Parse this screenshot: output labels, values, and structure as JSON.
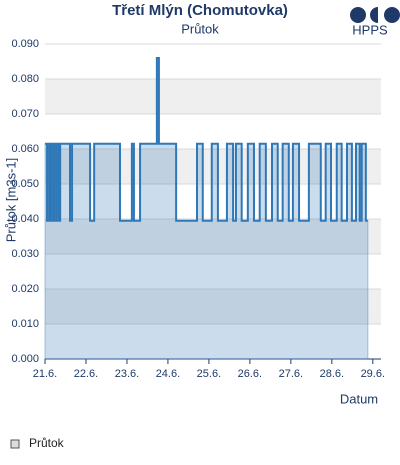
{
  "chart_data": {
    "type": "line",
    "title": "Třetí Mlýn (Chomutovka)",
    "subtitle": "Průtok",
    "logo_text": "HPPS",
    "y_label": "Průtok [m3s-1]",
    "x_label": "Datum",
    "xlim": [
      21,
      29.2
    ],
    "xticks": [
      {
        "value": 21,
        "label": "21.6."
      },
      {
        "value": 22,
        "label": "22.6."
      },
      {
        "value": 23,
        "label": "23.6."
      },
      {
        "value": 24,
        "label": "24.6."
      },
      {
        "value": 25,
        "label": "25.6."
      },
      {
        "value": 26,
        "label": "26.6."
      },
      {
        "value": 27,
        "label": "27.6."
      },
      {
        "value": 28,
        "label": "28.6."
      },
      {
        "value": 29,
        "label": "29.6."
      }
    ],
    "ylim": [
      0,
      0.09
    ],
    "yticks": [
      {
        "value": 0,
        "label": "0.000"
      },
      {
        "value": 0.01,
        "label": "0.010"
      },
      {
        "value": 0.02,
        "label": "0.020"
      },
      {
        "value": 0.03,
        "label": "0.030"
      },
      {
        "value": 0.04,
        "label": "0.040"
      },
      {
        "value": 0.05,
        "label": "0.050"
      },
      {
        "value": 0.06,
        "label": "0.060"
      },
      {
        "value": 0.07,
        "label": "0.070"
      },
      {
        "value": 0.08,
        "label": "0.080"
      },
      {
        "value": 0.09,
        "label": "0.090"
      }
    ],
    "grid": true,
    "legend": "bottom-left",
    "series": [
      {
        "name": "Průtok",
        "color": "#2f78b7",
        "x": [
          21.0,
          21.05,
          21.05,
          21.07,
          21.07,
          21.12,
          21.12,
          21.15,
          21.15,
          21.2,
          21.2,
          21.22,
          21.22,
          21.27,
          21.27,
          21.29,
          21.29,
          21.34,
          21.34,
          21.37,
          21.37,
          21.61,
          21.61,
          21.66,
          21.66,
          22.1,
          22.1,
          22.2,
          22.2,
          22.83,
          22.83,
          23.12,
          23.12,
          23.17,
          23.17,
          23.32,
          23.32,
          23.73,
          23.73,
          23.78,
          23.78,
          24.2,
          24.2,
          24.71,
          24.71,
          24.85,
          24.85,
          25.07,
          25.07,
          25.22,
          25.22,
          25.44,
          25.44,
          25.59,
          25.59,
          25.66,
          25.66,
          25.8,
          25.8,
          25.95,
          25.95,
          26.1,
          26.1,
          26.24,
          26.24,
          26.39,
          26.39,
          26.54,
          26.54,
          26.68,
          26.68,
          26.8,
          26.8,
          26.95,
          26.95,
          27.05,
          27.05,
          27.2,
          27.2,
          27.44,
          27.44,
          27.73,
          27.73,
          27.85,
          27.85,
          27.98,
          27.98,
          28.12,
          28.12,
          28.24,
          28.24,
          28.37,
          28.37,
          28.49,
          28.49,
          28.59,
          28.59,
          28.68,
          28.68,
          28.73,
          28.73,
          28.83,
          28.83,
          28.88
        ],
        "values": [
          0.0615,
          0.0615,
          0.0395,
          0.0395,
          0.0615,
          0.0615,
          0.0395,
          0.0395,
          0.0615,
          0.0615,
          0.0395,
          0.0395,
          0.0615,
          0.0615,
          0.0395,
          0.0395,
          0.0615,
          0.0615,
          0.0395,
          0.0395,
          0.0615,
          0.0615,
          0.0395,
          0.0395,
          0.0615,
          0.0615,
          0.0395,
          0.0395,
          0.0615,
          0.0615,
          0.0395,
          0.0395,
          0.0615,
          0.0615,
          0.0395,
          0.0395,
          0.0615,
          0.0615,
          0.086,
          0.086,
          0.0615,
          0.0615,
          0.0395,
          0.0395,
          0.0615,
          0.0615,
          0.0395,
          0.0395,
          0.0615,
          0.0615,
          0.0395,
          0.0395,
          0.0615,
          0.0615,
          0.0395,
          0.0395,
          0.0615,
          0.0615,
          0.0395,
          0.0395,
          0.0615,
          0.0615,
          0.0395,
          0.0395,
          0.0615,
          0.0615,
          0.0395,
          0.0395,
          0.0615,
          0.0615,
          0.0395,
          0.0395,
          0.0615,
          0.0615,
          0.0395,
          0.0395,
          0.0615,
          0.0615,
          0.0395,
          0.0395,
          0.0615,
          0.0615,
          0.0395,
          0.0395,
          0.0615,
          0.0615,
          0.0395,
          0.0395,
          0.0615,
          0.0615,
          0.0395,
          0.0395,
          0.0615,
          0.0615,
          0.0395,
          0.0395,
          0.0615,
          0.0615,
          0.0395,
          0.0395,
          0.0615,
          0.0615,
          0.0395,
          0.0395
        ]
      }
    ]
  }
}
